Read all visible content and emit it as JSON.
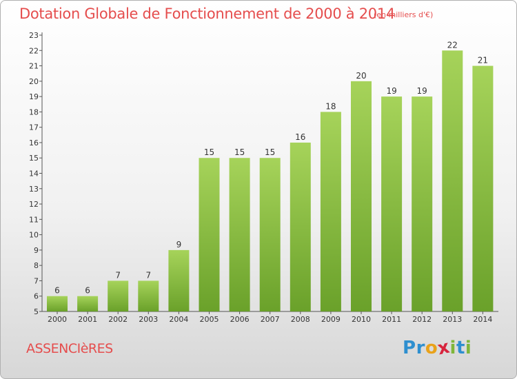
{
  "title": "Dotation Globale de Fonctionnement de 2000 à 2014",
  "unit_note": "(en milliers d'€)",
  "commune": "ASSENCIèRES",
  "brand": {
    "letters": [
      "P",
      "r",
      "o",
      "x",
      "i",
      "t",
      "i"
    ],
    "colors": [
      "#2e8fcf",
      "#2e8fcf",
      "#e9a21a",
      "#d7243d",
      "#7fb63a",
      "#2e8fcf",
      "#7fb63a"
    ]
  },
  "colors": {
    "bar": "#7db638",
    "bar_light": "#a6d35a",
    "axis": "#555555",
    "title": "#e54d4d"
  },
  "chart_data": {
    "type": "bar",
    "categories": [
      "2000",
      "2001",
      "2002",
      "2003",
      "2004",
      "2005",
      "2006",
      "2007",
      "2008",
      "2009",
      "2010",
      "2011",
      "2012",
      "2013",
      "2014"
    ],
    "values": [
      6,
      6,
      7,
      7,
      9,
      15,
      15,
      15,
      16,
      18,
      20,
      19,
      19,
      22,
      21
    ],
    "ylim": [
      5,
      23
    ],
    "yticks": [
      5,
      6,
      7,
      8,
      9,
      10,
      11,
      12,
      13,
      14,
      15,
      16,
      17,
      18,
      19,
      20,
      21,
      22,
      23
    ],
    "title": "Dotation Globale de Fonctionnement de 2000 à 2014",
    "xlabel": "",
    "ylabel": "",
    "grid": false
  }
}
